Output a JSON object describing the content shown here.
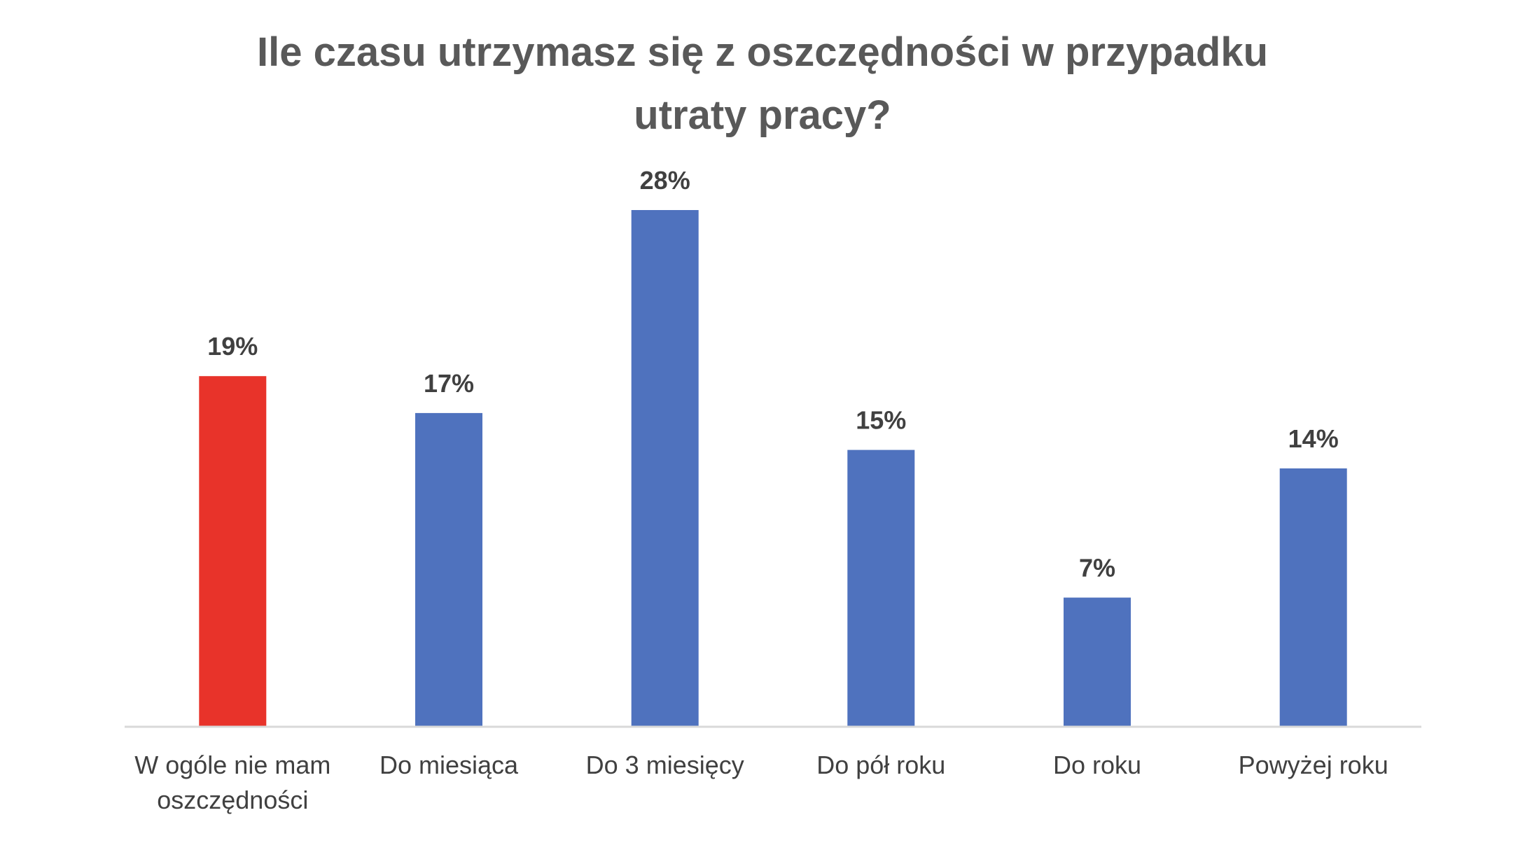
{
  "chart_data": {
    "type": "bar",
    "title_lines": [
      "Ile czasu utrzymasz się z oszczędności w przypadku",
      "utraty pracy?"
    ],
    "categories": [
      [
        "W ogóle nie mam",
        "oszczędności"
      ],
      [
        "Do miesiąca"
      ],
      [
        "Do 3 miesięcy"
      ],
      [
        "Do pół roku"
      ],
      [
        "Do roku"
      ],
      [
        "Powyżej roku"
      ]
    ],
    "values": [
      19,
      17,
      28,
      15,
      7,
      14
    ],
    "value_labels": [
      "19%",
      "17%",
      "28%",
      "15%",
      "7%",
      "14%"
    ],
    "bar_colors": [
      "#e8332a",
      "#4f72be",
      "#4f72be",
      "#4f72be",
      "#4f72be",
      "#4f72be"
    ],
    "xlabel": "",
    "ylabel": "",
    "ylim": [
      0,
      28
    ],
    "grid": false,
    "legend": "none"
  },
  "colors": {
    "title": "#595959",
    "axis": "#d9d9d9",
    "label": "#404040"
  }
}
